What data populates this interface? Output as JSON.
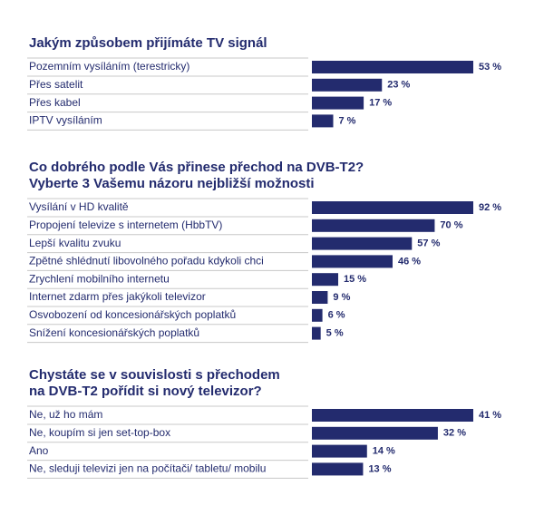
{
  "chart_data": [
    {
      "type": "bar",
      "orientation": "horizontal",
      "color": "#232b6e",
      "title": [
        "Jakým způsobem přijímáte TV signál"
      ],
      "categories": [
        "Pozemním vysíláním (terestricky)",
        "Přes satelit",
        "Přes kabel",
        "IPTV vysíláním"
      ],
      "values": [
        53,
        23,
        17,
        7
      ],
      "value_labels": [
        "53 %",
        "23 %",
        "17 %",
        "7 %"
      ]
    },
    {
      "type": "bar",
      "orientation": "horizontal",
      "color": "#232b6e",
      "title": [
        "Co dobrého podle Vás přinese přechod na DVB-T2?",
        "Vyberte 3 Vašemu názoru nejbližší možnosti"
      ],
      "categories": [
        "Vysílání v HD kvalitě",
        "Propojení televize s internetem (HbbTV)",
        "Lepší kvalitu zvuku",
        "Zpětné shlédnutí libovolného pořadu kdykoli chci",
        "Zrychlení mobilního internetu",
        "Internet zdarm přes jakýkoli televizor",
        "Osvobození od koncesionářských poplatků",
        "Snížení koncesionářských poplatků"
      ],
      "values": [
        92,
        70,
        57,
        46,
        15,
        9,
        6,
        5
      ],
      "value_labels": [
        "92 %",
        "70 %",
        "57 %",
        "46 %",
        "15 %",
        "9 %",
        "6 %",
        "5 %"
      ]
    },
    {
      "type": "bar",
      "orientation": "horizontal",
      "color": "#232b6e",
      "title": [
        "Chystáte se v souvislosti s přechodem",
        "na DVB-T2 pořídit si nový televizor?"
      ],
      "categories": [
        "Ne, už ho mám",
        "Ne, koupím si jen set-top-box",
        "Ano",
        "Ne, sleduji televizi jen na počítači/ tabletu/ mobilu"
      ],
      "values": [
        41,
        32,
        14,
        13
      ],
      "value_labels": [
        "41 %",
        "32 %",
        "14 %",
        "13 %"
      ]
    }
  ]
}
